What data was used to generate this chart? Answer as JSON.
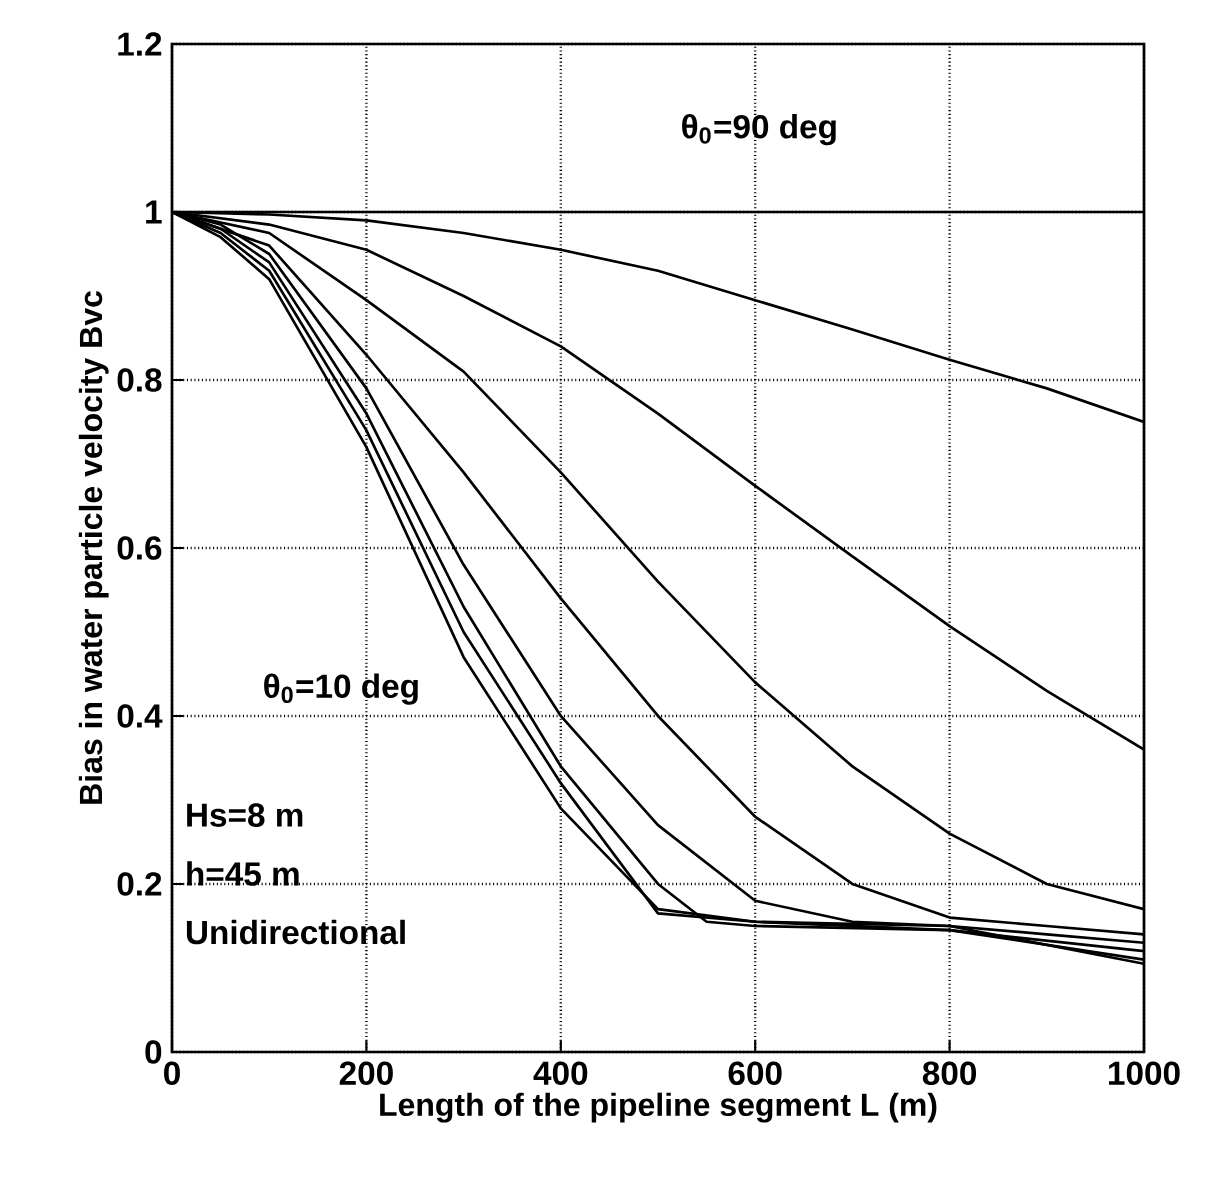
{
  "chart_data": {
    "type": "line",
    "xlabel": "Length of the pipeline segment L (m)",
    "ylabel": "Bias in water particle velocity Bvc",
    "xlim": [
      0,
      1000
    ],
    "ylim": [
      0,
      1.2
    ],
    "xticks": [
      0,
      200,
      400,
      600,
      800,
      1000
    ],
    "yticks": [
      0,
      0.2,
      0.4,
      0.6,
      0.8,
      1,
      1.2
    ],
    "grid": true,
    "marker": "none",
    "line_style": "solid",
    "series": [
      {
        "color": "#000000",
        "x": [
          0,
          100,
          200,
          300,
          400,
          500,
          600,
          700,
          800,
          900,
          1000
        ],
        "values": [
          1,
          0.997,
          0.99,
          0.975,
          0.955,
          0.93,
          0.895,
          0.86,
          0.824,
          0.79,
          0.75
        ]
      },
      {
        "color": "#000000",
        "x": [
          0,
          100,
          200,
          300,
          400,
          500,
          600,
          700,
          800,
          900,
          1000
        ],
        "values": [
          1,
          0.985,
          0.955,
          0.9,
          0.84,
          0.76,
          0.674,
          0.59,
          0.507,
          0.43,
          0.36
        ]
      },
      {
        "color": "#000000",
        "x": [
          0,
          100,
          200,
          300,
          400,
          500,
          600,
          700,
          800,
          900,
          1000
        ],
        "values": [
          1,
          0.975,
          0.895,
          0.81,
          0.69,
          0.56,
          0.44,
          0.34,
          0.26,
          0.2,
          0.17
        ]
      },
      {
        "color": "#000000",
        "x": [
          0,
          100,
          200,
          300,
          400,
          500,
          600,
          700,
          800,
          900,
          1000
        ],
        "values": [
          1,
          0.96,
          0.83,
          0.69,
          0.54,
          0.4,
          0.28,
          0.2,
          0.16,
          0.15,
          0.14
        ]
      },
      {
        "color": "#000000",
        "x": [
          0,
          50,
          100,
          200,
          300,
          400,
          500,
          600,
          700,
          800,
          900,
          1000
        ],
        "values": [
          1,
          0.985,
          0.95,
          0.79,
          0.58,
          0.4,
          0.27,
          0.18,
          0.155,
          0.15,
          0.14,
          0.13
        ]
      },
      {
        "color": "#000000",
        "x": [
          0,
          50,
          100,
          200,
          300,
          400,
          500,
          550,
          600,
          800,
          1000
        ],
        "values": [
          1,
          0.98,
          0.94,
          0.76,
          0.53,
          0.34,
          0.2,
          0.155,
          0.15,
          0.145,
          0.12
        ]
      },
      {
        "color": "#000000",
        "x": [
          0,
          50,
          100,
          200,
          300,
          400,
          500,
          600,
          800,
          1000
        ],
        "values": [
          1,
          0.975,
          0.93,
          0.74,
          0.5,
          0.32,
          0.165,
          0.155,
          0.145,
          0.11
        ]
      },
      {
        "color": "#000000",
        "x": [
          0,
          50,
          100,
          200,
          300,
          400,
          500,
          600,
          800,
          1000
        ],
        "values": [
          1,
          0.97,
          0.92,
          0.72,
          0.47,
          0.29,
          0.17,
          0.155,
          0.15,
          0.105
        ]
      }
    ],
    "ref_lines": [
      {
        "axis": "y",
        "value": 1,
        "color": "#000000",
        "line_style": "solid"
      }
    ],
    "annotations": [
      "θ$_{0}$=90 deg",
      "θ$_{0}$=10 deg",
      "Hs=8 m",
      "h=45 m",
      "Unidirectional"
    ]
  }
}
